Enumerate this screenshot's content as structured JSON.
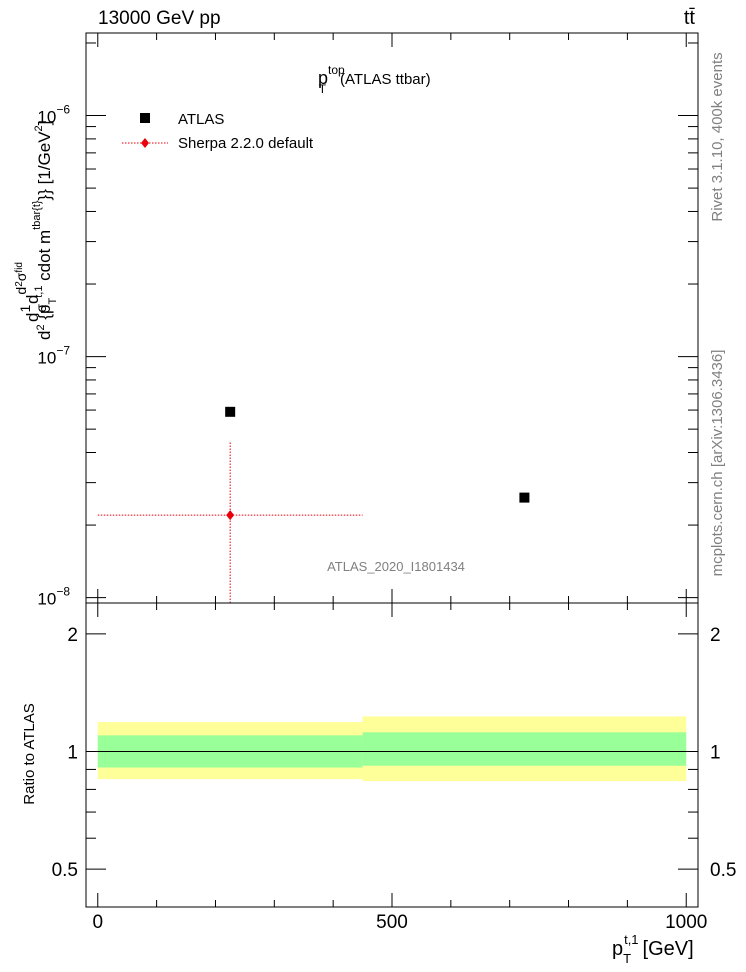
{
  "header": {
    "beam": "13000 GeV pp",
    "process": "tt̄"
  },
  "side_labels": {
    "rivet": "Rivet 3.1.10,  400k events",
    "mcplots": "mcplots.cern.ch [arXiv:1306.3436]"
  },
  "chart_data": [
    {
      "type": "scatter",
      "title_main": "p",
      "title_sup": "top",
      "title_sub": "T",
      "title_rest": "(ATLAS ttbar)",
      "watermark": "ATLAS_2020_I1801434",
      "ylabel": "d1σdd²σᶠⁱᵈd² {p_T^{t,1} cdot m^{tbar{t}}} [1/GeV²]",
      "ylabel_parts": {
        "frac_num": "1",
        "frac_den": "σ",
        "d_prefix": "d",
        "d2": "d",
        "sigma_fid": "σ",
        "fid": "fid",
        "body": "{p",
        "body_sub": "T",
        "body_sup": "t,1",
        "body_mid": "cdot m",
        "body_mid_sup": "tbar{t}",
        "body_end": "}} [1/GeV",
        "unit_sup": "2",
        "unit_end": "]"
      },
      "yscale": "log",
      "ylim": [
        9.5e-09,
        2.2e-06
      ],
      "xlim": [
        -20,
        1020
      ],
      "ytick_labels": [
        {
          "value": 1e-06,
          "base": "10",
          "exp": "−6"
        },
        {
          "value": 1e-07,
          "base": "10",
          "exp": "−7"
        },
        {
          "value": 1e-08,
          "base": "10",
          "exp": "−8"
        }
      ],
      "series": [
        {
          "name": "ATLAS",
          "marker": "square",
          "color": "#000000",
          "points": [
            {
              "x": 225,
              "y": 5.9e-08
            },
            {
              "x": 725,
              "y": 2.6e-08
            }
          ]
        },
        {
          "name": "Sherpa 2.2.0 default",
          "marker": "diamond",
          "color": "#e8000b",
          "points": [
            {
              "x": 225,
              "x_low": 0,
              "x_high": 450,
              "y": 2.2e-08,
              "y_low": 9.5e-09,
              "y_high": 4.4e-08
            }
          ]
        }
      ]
    },
    {
      "type": "area",
      "ylabel": "Ratio to ATLAS",
      "xlabel_main": "p",
      "xlabel_sub": "T",
      "xlabel_sup": "t,1",
      "xlabel_unit": "[GeV]",
      "xlim": [
        -20,
        1020
      ],
      "ylim": [
        0.4,
        2.4
      ],
      "yscale": "log",
      "xticks": [
        0,
        500,
        1000
      ],
      "xtick_labels": [
        "0",
        "500",
        "1000"
      ],
      "yticks": [
        0.5,
        1,
        2
      ],
      "ytick_labels": [
        "0.5",
        "1",
        "2"
      ],
      "reference_line": 1,
      "bands": [
        {
          "x_low": 0,
          "x_high": 450,
          "outer": [
            0.85,
            1.19
          ],
          "inner": [
            0.91,
            1.1
          ]
        },
        {
          "x_low": 450,
          "x_high": 1000,
          "outer": [
            0.84,
            1.23
          ],
          "inner": [
            0.92,
            1.12
          ]
        }
      ],
      "colors": {
        "outer": "#ffff99",
        "inner": "#99ff99",
        "line": "#000000"
      }
    }
  ]
}
